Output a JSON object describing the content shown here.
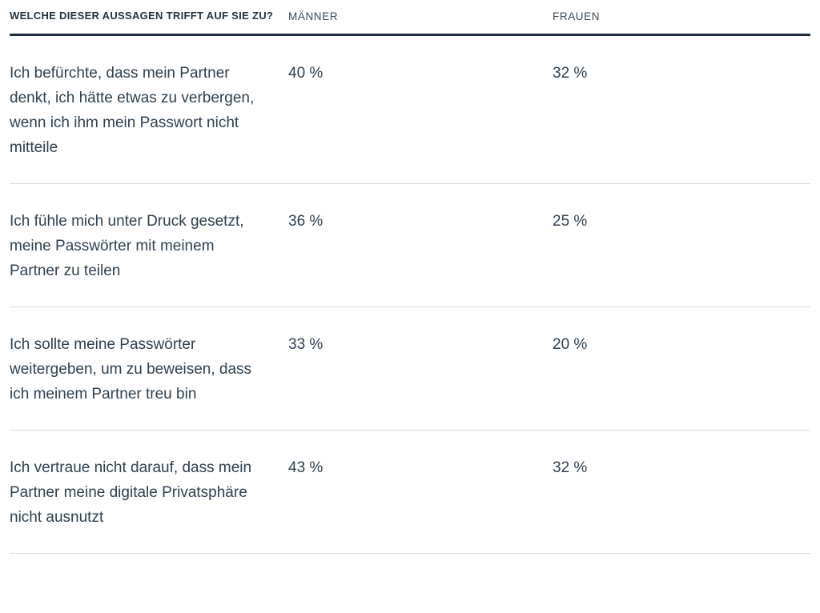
{
  "table": {
    "header": {
      "question_label": "WELCHE DIESER AUSSAGEN TRIFFT AUF SIE ZU?",
      "col_men": "MÄNNER",
      "col_women": "FRAUEN"
    },
    "rows": [
      {
        "statement": "Ich befürchte, dass mein Partner denkt, ich hätte etwas zu verbergen, wenn ich ihm mein Passwort nicht mitteile",
        "men": "40 %",
        "women": "32 %"
      },
      {
        "statement": "Ich fühle mich unter Druck gesetzt, meine Passwörter mit meinem Partner zu teilen",
        "men": "36 %",
        "women": "25 %"
      },
      {
        "statement": "Ich sollte meine Passwörter weitergeben, um zu beweisen, dass ich meinem Partner treu bin",
        "men": "33 %",
        "women": "20 %"
      },
      {
        "statement": "Ich vertraue nicht darauf, dass mein Partner meine digitale Privatsphäre nicht ausnutzt",
        "men": "43 %",
        "women": "32 %"
      }
    ],
    "colors": {
      "text": "#2f4050",
      "heavy_rule": "#1b2a38",
      "divider": "#dadde0"
    }
  },
  "chart_data": {
    "type": "table",
    "title": "Welche dieser Aussagen trifft auf Sie zu?",
    "categories": [
      "Ich befürchte, dass mein Partner denkt, ich hätte etwas zu verbergen, wenn ich ihm mein Passwort nicht mitteile",
      "Ich fühle mich unter Druck gesetzt, meine Passwörter mit meinem Partner zu teilen",
      "Ich sollte meine Passwörter weitergeben, um zu beweisen, dass ich meinem Partner treu bin",
      "Ich vertraue nicht darauf, dass mein Partner meine digitale Privatsphäre nicht ausnutzt"
    ],
    "series": [
      {
        "name": "Männer",
        "values": [
          40,
          36,
          33,
          43
        ]
      },
      {
        "name": "Frauen",
        "values": [
          32,
          25,
          20,
          32
        ]
      }
    ],
    "value_unit": "%"
  }
}
